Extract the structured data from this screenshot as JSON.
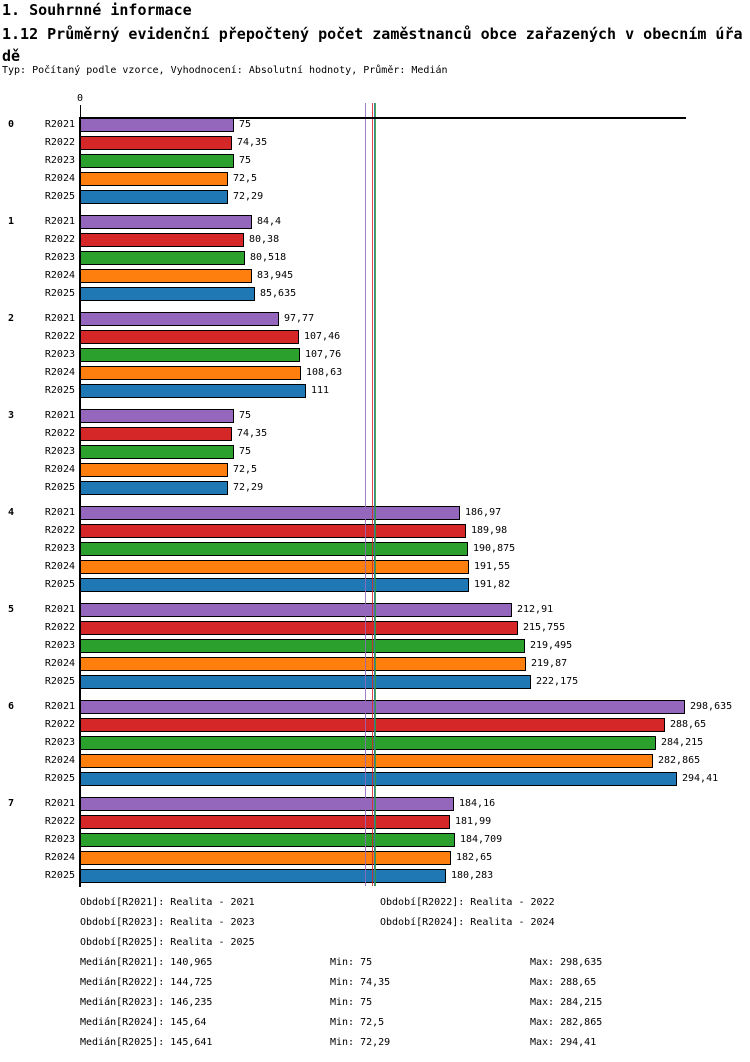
{
  "header": {
    "title1": "1. Souhrnné informace",
    "title2": "1.12 Průměrný evidenční přepočtený počet zaměstnanců obce zařazených v obecním úřadě",
    "subtitle": "Typ: Počítaný podle vzorce, Vyhodnocení: Absolutní hodnoty, Průměr: Medián"
  },
  "chart_data": {
    "type": "bar",
    "orientation": "horizontal-grouped",
    "title": "1.12 Průměrný evidenční přepočtený počet zaměstnanců obce zařazených v obecním úřadě",
    "xlabel": "",
    "ylabel": "",
    "xlim": [
      0,
      300
    ],
    "x_origin_tick": "0",
    "grid": false,
    "legend_position": "none",
    "series_keys": [
      "R2021",
      "R2022",
      "R2023",
      "R2024",
      "R2025"
    ],
    "series_colors": [
      "#9467bd",
      "#d62728",
      "#2ca02c",
      "#ff7f0e",
      "#1f77b4"
    ],
    "categories": [
      "0",
      "1",
      "2",
      "3",
      "4",
      "5",
      "6",
      "7"
    ],
    "values": [
      [
        75,
        74.35,
        75,
        72.5,
        72.29
      ],
      [
        84.4,
        80.38,
        80.518,
        83.945,
        85.635
      ],
      [
        97.77,
        107.46,
        107.76,
        108.63,
        111
      ],
      [
        75,
        74.35,
        75,
        72.5,
        72.29
      ],
      [
        186.97,
        189.98,
        190.875,
        191.55,
        191.82
      ],
      [
        212.91,
        215.755,
        219.495,
        219.87,
        222.175
      ],
      [
        298.635,
        288.65,
        284.215,
        282.865,
        294.41
      ],
      [
        184.16,
        181.99,
        184.709,
        182.65,
        180.283
      ]
    ],
    "value_labels": [
      [
        "75",
        "74,35",
        "75",
        "72,5",
        "72,29"
      ],
      [
        "84,4",
        "80,38",
        "80,518",
        "83,945",
        "85,635"
      ],
      [
        "97,77",
        "107,46",
        "107,76",
        "108,63",
        "111"
      ],
      [
        "75",
        "74,35",
        "75",
        "72,5",
        "72,29"
      ],
      [
        "186,97",
        "189,98",
        "190,875",
        "191,55",
        "191,82"
      ],
      [
        "212,91",
        "215,755",
        "219,495",
        "219,87",
        "222,175"
      ],
      [
        "298,635",
        "288,65",
        "284,215",
        "282,865",
        "294,41"
      ],
      [
        "184,16",
        "181,99",
        "184,709",
        "182,65",
        "180,283"
      ]
    ],
    "median_lines": {
      "values": [
        140.965,
        144.725,
        146.235,
        145.64,
        145.641
      ],
      "labels": [
        "140,965",
        "144,725",
        "146,235",
        "145,64",
        "145,641"
      ]
    }
  },
  "footer": {
    "obdobi_rows": [
      [
        "Období[R2021]: Realita - 2021",
        "Období[R2022]: Realita - 2022"
      ],
      [
        "Období[R2023]: Realita - 2023",
        "Období[R2024]: Realita - 2024"
      ],
      [
        "Období[R2025]: Realita - 2025",
        ""
      ]
    ],
    "stats_rows": [
      [
        "Medián[R2021]: 140,965",
        "Min: 75",
        "Max: 298,635"
      ],
      [
        "Medián[R2022]: 144,725",
        "Min: 74,35",
        "Max: 288,65"
      ],
      [
        "Medián[R2023]: 146,235",
        "Min: 75",
        "Max: 284,215"
      ],
      [
        "Medián[R2024]: 145,64",
        "Min: 72,5",
        "Max: 282,865"
      ],
      [
        "Medián[R2025]: 145,641",
        "Min: 72,29",
        "Max: 294,41"
      ]
    ]
  }
}
